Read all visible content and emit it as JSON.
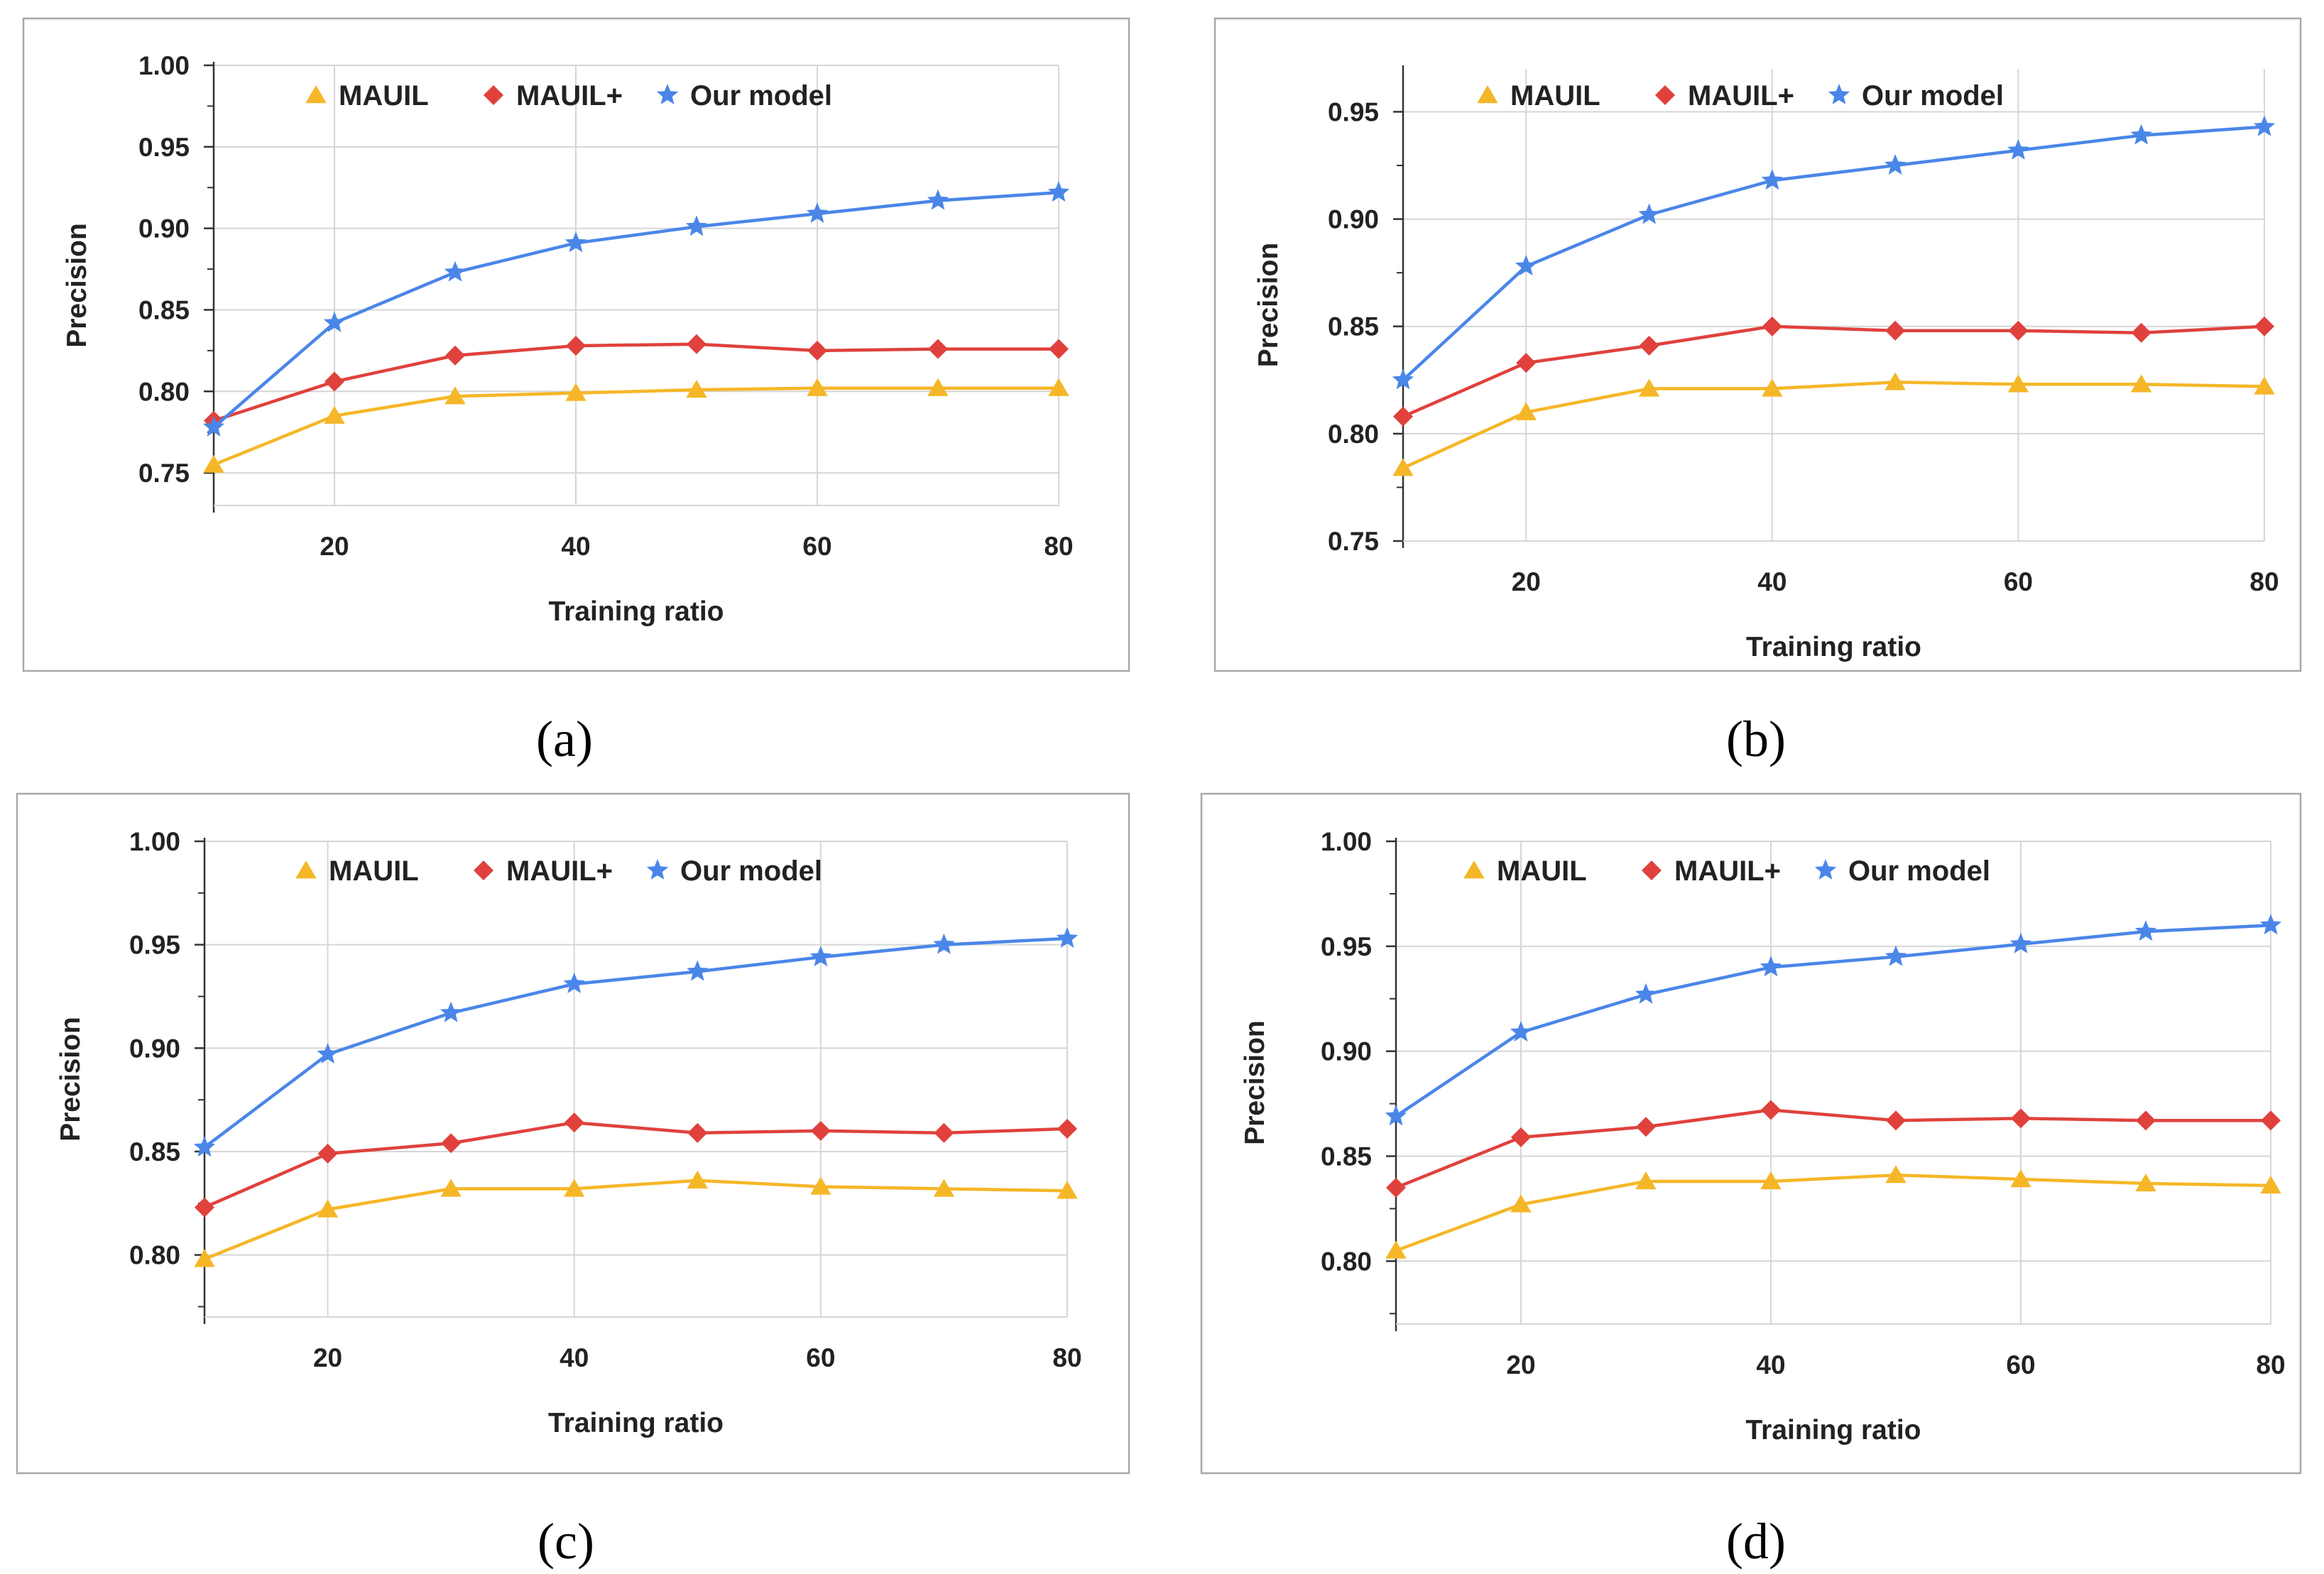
{
  "colors": {
    "MAUIL": "#f5b728",
    "MAUIL+": "#e0413c",
    "Our model": "#4a86e8",
    "grid": "#d6d6d6",
    "frame": "#a8a8a8",
    "axis": "#333333"
  },
  "icons": {
    "MAUIL": "triangle-marker-icon",
    "MAUIL+": "diamond-marker-icon",
    "Our model": "star-marker-icon"
  },
  "chart_data": [
    {
      "type": "line",
      "caption": "(a)",
      "xlabel": "Training ratio",
      "ylabel": "Precision",
      "xlim": [
        10,
        80
      ],
      "ylim": [
        0.73,
        1.0
      ],
      "x": [
        10,
        20,
        30,
        40,
        50,
        60,
        70,
        80
      ],
      "x_ticks": [
        "20",
        "40",
        "60",
        "80"
      ],
      "y_ticks": [
        "0.75",
        "0.80",
        "0.85",
        "0.90",
        "0.95",
        "1.00"
      ],
      "legend_position": "top",
      "grid": true,
      "series": [
        {
          "name": "MAUIL",
          "values": [
            0.755,
            0.785,
            0.797,
            0.799,
            0.801,
            0.802,
            0.802,
            0.802
          ]
        },
        {
          "name": "MAUIL+",
          "values": [
            0.782,
            0.806,
            0.822,
            0.828,
            0.829,
            0.825,
            0.826,
            0.826
          ]
        },
        {
          "name": "Our model",
          "values": [
            0.778,
            0.842,
            0.873,
            0.891,
            0.901,
            0.909,
            0.917,
            0.922
          ]
        }
      ]
    },
    {
      "type": "line",
      "caption": "(b)",
      "xlabel": "Training ratio",
      "ylabel": "Precision",
      "xlim": [
        10,
        80
      ],
      "ylim": [
        0.75,
        0.97
      ],
      "x": [
        10,
        20,
        30,
        40,
        50,
        60,
        70,
        80
      ],
      "x_ticks": [
        "20",
        "40",
        "60",
        "80"
      ],
      "y_ticks": [
        "0.75",
        "0.80",
        "0.85",
        "0.90",
        "0.95"
      ],
      "legend_position": "top",
      "grid": true,
      "series": [
        {
          "name": "MAUIL",
          "values": [
            0.784,
            0.81,
            0.821,
            0.821,
            0.824,
            0.823,
            0.823,
            0.822
          ]
        },
        {
          "name": "MAUIL+",
          "values": [
            0.808,
            0.833,
            0.841,
            0.85,
            0.848,
            0.848,
            0.847,
            0.85
          ]
        },
        {
          "name": "Our model",
          "values": [
            0.825,
            0.878,
            0.902,
            0.918,
            0.925,
            0.932,
            0.939,
            0.943
          ]
        }
      ]
    },
    {
      "type": "line",
      "caption": "(c)",
      "xlabel": "Training ratio",
      "ylabel": "Precision",
      "xlim": [
        10,
        80
      ],
      "ylim": [
        0.77,
        1.0
      ],
      "x": [
        10,
        20,
        30,
        40,
        50,
        60,
        70,
        80
      ],
      "x_ticks": [
        "20",
        "40",
        "60",
        "80"
      ],
      "y_ticks": [
        "0.80",
        "0.85",
        "0.90",
        "0.95",
        "1.00"
      ],
      "legend_position": "top",
      "grid": true,
      "series": [
        {
          "name": "MAUIL",
          "values": [
            0.798,
            0.822,
            0.832,
            0.832,
            0.836,
            0.833,
            0.832,
            0.831
          ]
        },
        {
          "name": "MAUIL+",
          "values": [
            0.823,
            0.849,
            0.854,
            0.864,
            0.859,
            0.86,
            0.859,
            0.861
          ]
        },
        {
          "name": "Our model",
          "values": [
            0.852,
            0.897,
            0.917,
            0.931,
            0.937,
            0.944,
            0.95,
            0.953
          ]
        }
      ]
    },
    {
      "type": "line",
      "caption": "(d)",
      "xlabel": "Training ratio",
      "ylabel": "Precision",
      "xlim": [
        10,
        80
      ],
      "ylim": [
        0.77,
        1.0
      ],
      "x": [
        10,
        20,
        30,
        40,
        50,
        60,
        70,
        80
      ],
      "x_ticks": [
        "20",
        "40",
        "60",
        "80"
      ],
      "y_ticks": [
        "0.80",
        "0.85",
        "0.90",
        "0.95",
        "1.00"
      ],
      "legend_position": "top",
      "grid": true,
      "series": [
        {
          "name": "MAUIL",
          "values": [
            0.805,
            0.827,
            0.838,
            0.838,
            0.841,
            0.839,
            0.837,
            0.836
          ]
        },
        {
          "name": "MAUIL+",
          "values": [
            0.835,
            0.859,
            0.864,
            0.872,
            0.867,
            0.868,
            0.867,
            0.867
          ]
        },
        {
          "name": "Our model",
          "values": [
            0.869,
            0.909,
            0.927,
            0.94,
            0.945,
            0.951,
            0.957,
            0.96
          ]
        }
      ]
    }
  ]
}
